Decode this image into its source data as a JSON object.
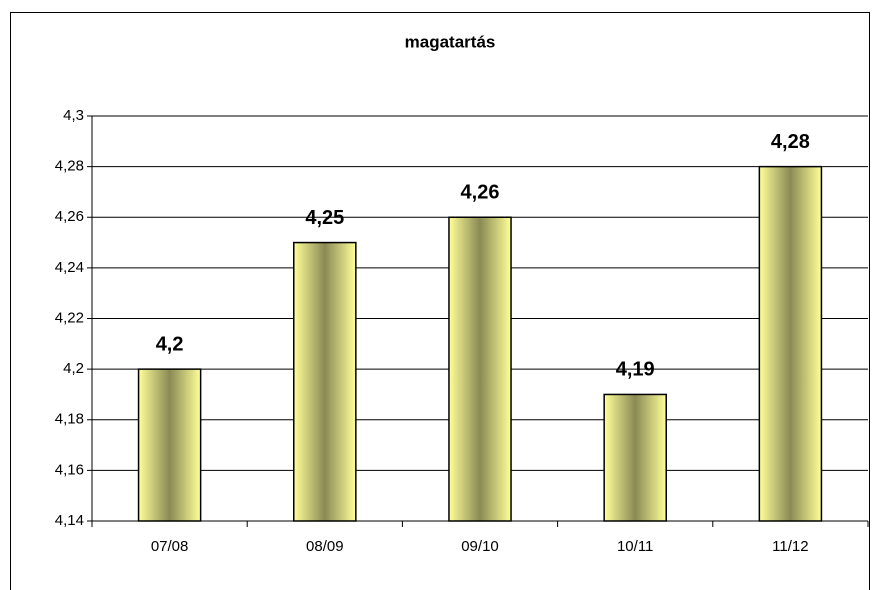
{
  "chart_data": {
    "type": "bar",
    "title": "magatartás",
    "categories": [
      "07/08",
      "08/09",
      "09/10",
      "10/11",
      "11/12"
    ],
    "values": [
      4.2,
      4.25,
      4.26,
      4.19,
      4.28
    ],
    "value_labels": [
      "4,2",
      "4,25",
      "4,26",
      "4,19",
      "4,28"
    ],
    "color": "#ffff99",
    "ylim": [
      4.14,
      4.3
    ],
    "yticks": [
      {
        "value": 4.14,
        "label": "4,14"
      },
      {
        "value": 4.16,
        "label": "4,16"
      },
      {
        "value": 4.18,
        "label": "4,18"
      },
      {
        "value": 4.2,
        "label": "4,2"
      },
      {
        "value": 4.22,
        "label": "4,22"
      },
      {
        "value": 4.24,
        "label": "4,24"
      },
      {
        "value": 4.26,
        "label": "4,26"
      },
      {
        "value": 4.28,
        "label": "4,28"
      },
      {
        "value": 4.3,
        "label": "4,3"
      }
    ],
    "grid": true
  }
}
